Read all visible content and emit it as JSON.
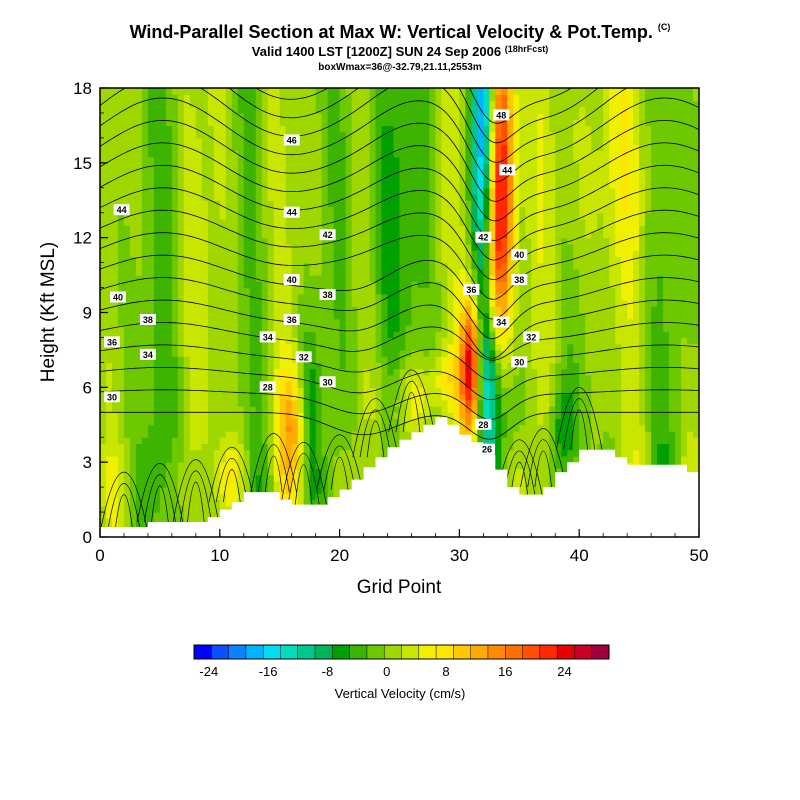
{
  "title": {
    "line1": "Wind-Parallel Section at Max W: Vertical Velocity & Pot.Temp.",
    "line1_unit": "(C)",
    "line2": "Valid 1400 LST [1200Z] SUN 24 Sep 2006",
    "line2_suffix": "(18hrFcst)",
    "line3": "boxWmax=36@-32.79,21.11,2553m"
  },
  "chart_data": {
    "type": "heatmap",
    "xlabel": "Grid Point",
    "ylabel": "Height (Kft MSL)",
    "xlim": [
      0,
      50
    ],
    "ylim": [
      0,
      18
    ],
    "x_ticks": [
      0,
      10,
      20,
      30,
      40,
      50
    ],
    "y_ticks": [
      0,
      3,
      6,
      9,
      12,
      15,
      18
    ],
    "terrain_kft": [
      [
        0,
        0.4
      ],
      [
        4,
        0.4
      ],
      [
        4,
        0.6
      ],
      [
        9,
        0.6
      ],
      [
        9,
        0.8
      ],
      [
        10,
        0.8
      ],
      [
        10,
        1.1
      ],
      [
        11,
        1.1
      ],
      [
        11,
        1.4
      ],
      [
        12,
        1.4
      ],
      [
        12,
        1.8
      ],
      [
        15,
        1.8
      ],
      [
        15,
        1.5
      ],
      [
        16,
        1.5
      ],
      [
        16,
        1.3
      ],
      [
        19,
        1.3
      ],
      [
        19,
        1.6
      ],
      [
        20,
        1.6
      ],
      [
        20,
        1.9
      ],
      [
        21,
        1.9
      ],
      [
        21,
        2.3
      ],
      [
        22,
        2.3
      ],
      [
        22,
        2.8
      ],
      [
        23,
        2.8
      ],
      [
        23,
        3.2
      ],
      [
        24,
        3.2
      ],
      [
        24,
        3.6
      ],
      [
        25,
        3.6
      ],
      [
        25,
        3.9
      ],
      [
        26,
        3.9
      ],
      [
        26,
        4.2
      ],
      [
        27,
        4.2
      ],
      [
        27,
        4.5
      ],
      [
        28,
        4.5
      ],
      [
        28,
        4.8
      ],
      [
        29,
        4.8
      ],
      [
        29,
        4.5
      ],
      [
        30,
        4.5
      ],
      [
        30,
        4.1
      ],
      [
        31,
        4.1
      ],
      [
        31,
        3.8
      ],
      [
        32,
        3.8
      ],
      [
        32,
        3.3
      ],
      [
        33,
        3.3
      ],
      [
        33,
        2.7
      ],
      [
        34,
        2.7
      ],
      [
        34,
        2.0
      ],
      [
        35,
        2.0
      ],
      [
        35,
        1.7
      ],
      [
        37,
        1.7
      ],
      [
        37,
        2.0
      ],
      [
        38,
        2.0
      ],
      [
        38,
        2.6
      ],
      [
        39,
        2.6
      ],
      [
        39,
        3.0
      ],
      [
        40,
        3.0
      ],
      [
        40,
        3.5
      ],
      [
        43,
        3.5
      ],
      [
        43,
        3.2
      ],
      [
        44,
        3.2
      ],
      [
        44,
        2.9
      ],
      [
        49,
        2.9
      ],
      [
        49,
        2.6
      ],
      [
        50,
        2.6
      ]
    ],
    "w_anomalies": [
      {
        "x": 32,
        "z": 15.5,
        "sx": 0.7,
        "sz": 5.5,
        "w": -22
      },
      {
        "x": 33.5,
        "z": 15.5,
        "sx": 0.8,
        "sz": 4.5,
        "w": 22
      },
      {
        "x": 32.8,
        "z": 11.5,
        "sx": 1.0,
        "sz": 3.0,
        "w": 12
      },
      {
        "x": 31,
        "z": 6.8,
        "sx": 0.6,
        "sz": 2.0,
        "w": 26
      },
      {
        "x": 32.3,
        "z": 6.5,
        "sx": 0.7,
        "sz": 2.0,
        "w": -8
      },
      {
        "x": 33,
        "z": 5.0,
        "sx": 1.2,
        "sz": 1.5,
        "w": -4
      },
      {
        "x": 16,
        "z": 4.6,
        "sx": 0.9,
        "sz": 1.6,
        "w": 10
      },
      {
        "x": 17.5,
        "z": 5.5,
        "sx": 0.6,
        "sz": 2.0,
        "w": -6
      },
      {
        "x": 26,
        "z": 5.5,
        "sx": 1.2,
        "sz": 1.2,
        "w": 7
      },
      {
        "x": 29,
        "z": 6.3,
        "sx": 1.0,
        "sz": 0.8,
        "w": 6
      },
      {
        "x": 38.5,
        "z": 4.4,
        "sx": 0.8,
        "sz": 1.3,
        "w": -6
      },
      {
        "x": 24,
        "z": 13.0,
        "sx": 1.4,
        "sz": 6.0,
        "w": -6
      },
      {
        "x": 40,
        "z": 15.0,
        "sx": 2.0,
        "sz": 4.0,
        "w": 3
      },
      {
        "x": 44,
        "z": 15.0,
        "sx": 2.0,
        "sz": 4.0,
        "w": 3
      },
      {
        "x": 9,
        "z": 13.0,
        "sx": 2.0,
        "sz": 5.0,
        "w": 1
      },
      {
        "x": 3,
        "z": 10.0,
        "sx": 1.5,
        "sz": 7.0,
        "w": -2
      },
      {
        "x": 49,
        "z": 13.0,
        "sx": 1.0,
        "sz": 5.0,
        "w": -2
      },
      {
        "x": 11,
        "z": 2.5,
        "sx": 1.0,
        "sz": 1.2,
        "w": 5
      },
      {
        "x": 5,
        "z": 3.0,
        "sx": 1.0,
        "sz": 2.0,
        "w": -2
      }
    ],
    "contour_labels": [
      {
        "text": "46",
        "x": 16,
        "z": 15.9
      },
      {
        "text": "44",
        "x": 1.8,
        "z": 13.1
      },
      {
        "text": "44",
        "x": 16,
        "z": 13.0
      },
      {
        "text": "42",
        "x": 19,
        "z": 12.1
      },
      {
        "text": "40",
        "x": 1.5,
        "z": 9.6
      },
      {
        "text": "40",
        "x": 16,
        "z": 10.3
      },
      {
        "text": "38",
        "x": 4,
        "z": 8.7
      },
      {
        "text": "38",
        "x": 19,
        "z": 9.7
      },
      {
        "text": "36",
        "x": 1,
        "z": 7.8
      },
      {
        "text": "36",
        "x": 16,
        "z": 8.7
      },
      {
        "text": "34",
        "x": 4,
        "z": 7.3
      },
      {
        "text": "34",
        "x": 14,
        "z": 8.0
      },
      {
        "text": "32",
        "x": 17,
        "z": 7.2
      },
      {
        "text": "30",
        "x": 1,
        "z": 5.6
      },
      {
        "text": "30",
        "x": 19,
        "z": 6.2
      },
      {
        "text": "28",
        "x": 14,
        "z": 6.0
      },
      {
        "text": "48",
        "x": 33.5,
        "z": 16.9
      },
      {
        "text": "44",
        "x": 34,
        "z": 14.7
      },
      {
        "text": "42",
        "x": 32,
        "z": 12.0
      },
      {
        "text": "40",
        "x": 35,
        "z": 11.3
      },
      {
        "text": "38",
        "x": 35,
        "z": 10.3
      },
      {
        "text": "36",
        "x": 31,
        "z": 9.9
      },
      {
        "text": "34",
        "x": 33.5,
        "z": 8.6
      },
      {
        "text": "32",
        "x": 36,
        "z": 8.0
      },
      {
        "text": "30",
        "x": 35,
        "z": 7.0
      },
      {
        "text": "28",
        "x": 32,
        "z": 4.5
      },
      {
        "text": "26",
        "x": 32.3,
        "z": 3.5
      }
    ],
    "colorbar": {
      "label": "Vertical Velocity (cm/s)",
      "tick_labels": [
        "-24",
        "-16",
        "-8",
        "0",
        "8",
        "16",
        "24"
      ],
      "tick_values": [
        -24,
        -16,
        -8,
        0,
        8,
        16,
        24
      ],
      "range": [
        -26,
        30
      ],
      "colors": [
        "#0000ff",
        "#0a50ff",
        "#0a82ff",
        "#00b4ff",
        "#00dcf0",
        "#00dcbe",
        "#00c88c",
        "#00b45a",
        "#00a000",
        "#3cb400",
        "#6ec800",
        "#a0d700",
        "#c8e600",
        "#f0f000",
        "#ffe600",
        "#ffc800",
        "#ffaa00",
        "#ff8c00",
        "#ff6e00",
        "#ff5000",
        "#ff2800",
        "#e60000",
        "#c80028",
        "#a00040"
      ]
    }
  }
}
